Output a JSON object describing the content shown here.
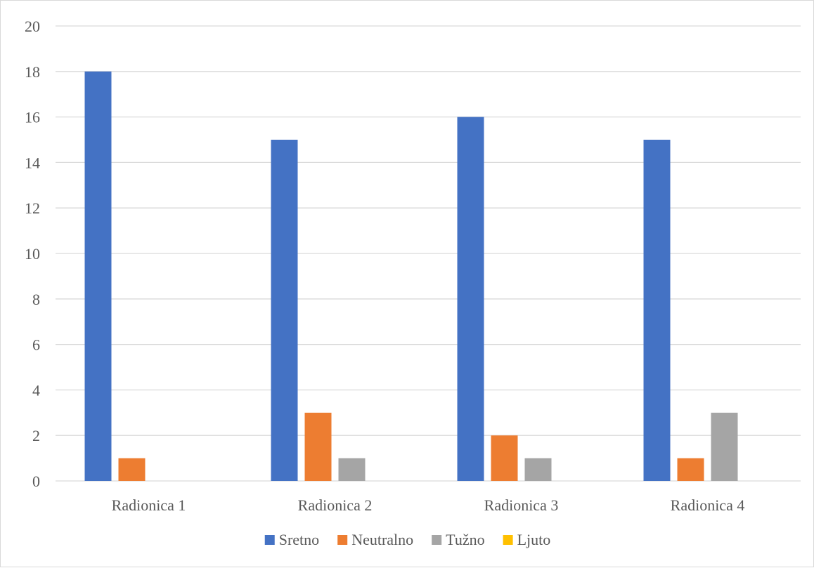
{
  "chart_data": {
    "type": "bar",
    "categories": [
      "Radionica 1",
      "Radionica 2",
      "Radionica 3",
      "Radionica 4"
    ],
    "series": [
      {
        "name": "Sretno",
        "color": "#4472C4",
        "values": [
          18,
          15,
          16,
          15
        ]
      },
      {
        "name": "Neutralno",
        "color": "#ED7D31",
        "values": [
          1,
          3,
          2,
          1
        ]
      },
      {
        "name": "Tužno",
        "color": "#A5A5A5",
        "values": [
          0,
          1,
          1,
          3
        ]
      },
      {
        "name": "Ljuto",
        "color": "#FFC000",
        "values": [
          0,
          0,
          0,
          0
        ]
      }
    ],
    "ylim": [
      0,
      20
    ],
    "yticks": [
      0,
      2,
      4,
      6,
      8,
      10,
      12,
      14,
      16,
      18,
      20
    ],
    "grid": true,
    "legend": "bottom",
    "title": "",
    "xlabel": "",
    "ylabel": ""
  }
}
